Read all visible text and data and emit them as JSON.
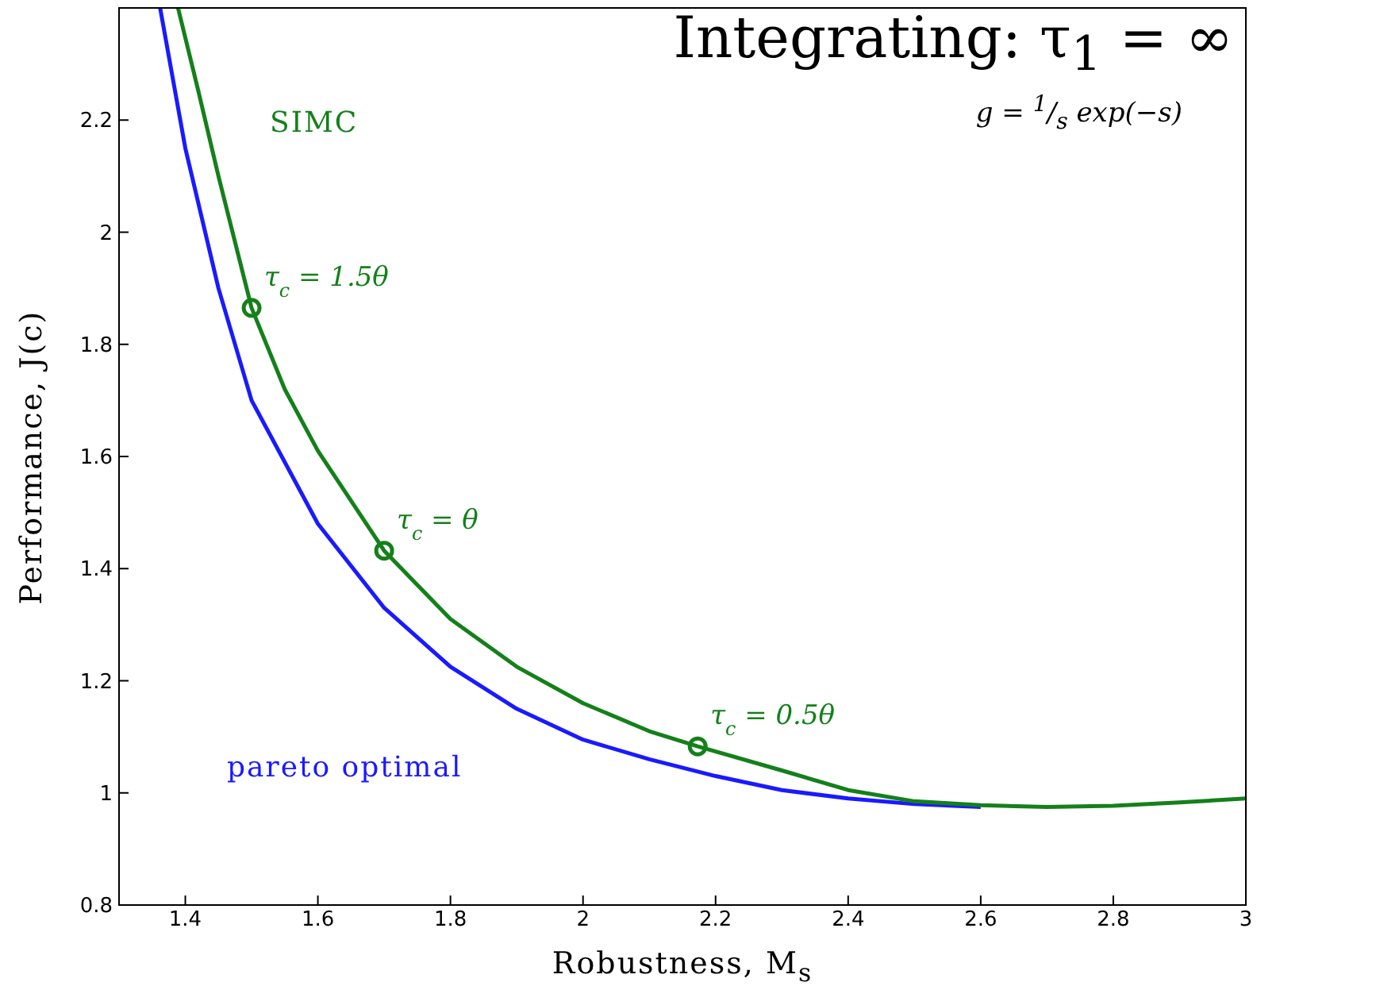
{
  "chart_data": {
    "type": "line",
    "title": "Integrating: τ$_{1}$ = ∞",
    "xlabel": "Robustness, M$_{s}$",
    "ylabel": "Performance, J(c)",
    "xlim": [
      1.3,
      3
    ],
    "xticks": [
      1.4,
      1.6,
      1.8,
      2,
      2.2,
      2.4,
      2.6,
      2.8,
      3
    ],
    "ylim": [
      0.8,
      2.4
    ],
    "yticks": [
      0.8,
      1,
      1.2,
      1.4,
      1.6,
      1.8,
      2,
      2.2
    ],
    "grid": false,
    "legend": false,
    "marker": "none",
    "series": [
      {
        "name": "pareto optimal",
        "color": "#1a1aff",
        "x": [
          1.362,
          1.4,
          1.45,
          1.5,
          1.6,
          1.7,
          1.8,
          1.9,
          2.0,
          2.1,
          2.2,
          2.3,
          2.4,
          2.5,
          2.6
        ],
        "values": [
          2.4,
          2.15,
          1.9,
          1.7,
          1.48,
          1.33,
          1.225,
          1.15,
          1.095,
          1.06,
          1.03,
          1.005,
          0.99,
          0.98,
          0.975
        ]
      },
      {
        "name": "SIMC",
        "color": "#14801a",
        "x": [
          1.389,
          1.42,
          1.45,
          1.5,
          1.55,
          1.6,
          1.7,
          1.8,
          1.9,
          2.0,
          2.1,
          2.173,
          2.3,
          2.4,
          2.5,
          2.6,
          2.7,
          2.8,
          2.9,
          3.0
        ],
        "values": [
          2.4,
          2.25,
          2.1,
          1.865,
          1.72,
          1.61,
          1.432,
          1.31,
          1.225,
          1.16,
          1.11,
          1.083,
          1.04,
          1.005,
          0.985,
          0.978,
          0.975,
          0.977,
          0.983,
          0.99
        ]
      },
      {
        "type": "scatter",
        "marker": "circle",
        "color": "#14801a",
        "x": [
          1.5,
          1.7,
          2.173
        ],
        "values": [
          1.865,
          1.432,
          1.083
        ]
      }
    ],
    "annotations": [
      "g = $^{1}$/$_{s}$ exp(−s)",
      {
        "text": "τ$_{c}$ = 1.5θ",
        "x": 1.5,
        "y": 1.865
      },
      {
        "text": "τ$_{c}$ = θ",
        "x": 1.7,
        "y": 1.432
      },
      {
        "text": "τ$_{c}$ = 0.5θ",
        "x": 2.173,
        "y": 1.083
      }
    ]
  }
}
